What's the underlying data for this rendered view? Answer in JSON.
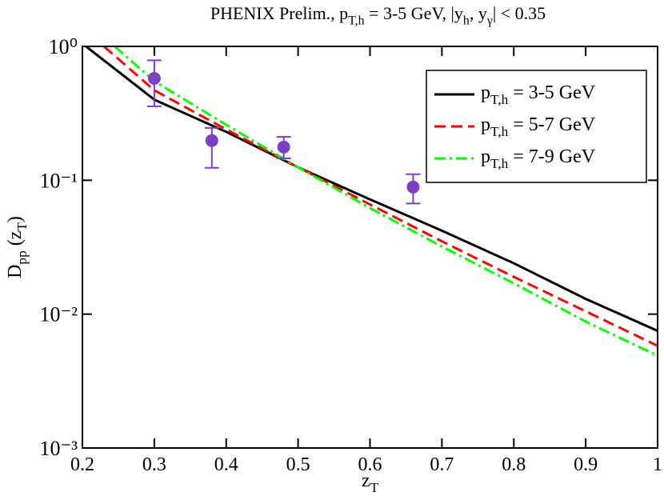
{
  "chart_data": {
    "type": "line",
    "title": [
      {
        "text": "PHENIX Prelim., p",
        "sub": false
      },
      {
        "text": "T,h",
        "sub": true
      },
      {
        "text": " = 3-5 GeV, |y",
        "sub": false
      },
      {
        "text": "h",
        "sub": true
      },
      {
        "text": ", y",
        "sub": false
      },
      {
        "text": "γ",
        "sub": true
      },
      {
        "text": "| < 0.35",
        "sub": false
      }
    ],
    "xlabel": [
      {
        "text": "z",
        "sub": false
      },
      {
        "text": "T",
        "sub": true
      }
    ],
    "ylabel": [
      {
        "text": "D",
        "sub": false
      },
      {
        "text": "pp",
        "sub": true
      },
      {
        "text": " (z",
        "sub": false
      },
      {
        "text": "T",
        "sub": true
      },
      {
        "text": ")",
        "sub": false
      }
    ],
    "xlim": [
      0.2,
      1
    ],
    "xticks": [
      0.2,
      0.3,
      0.4,
      0.5,
      0.6,
      0.7,
      0.8,
      0.9,
      1
    ],
    "ylim": [
      0.001,
      1
    ],
    "yscale": "log",
    "yticks": [
      {
        "value": 0.001,
        "label": "10⁻³"
      },
      {
        "value": 0.01,
        "label": "10⁻²"
      },
      {
        "value": 0.1,
        "label": "10⁻¹"
      },
      {
        "value": 1,
        "label": "10⁰"
      }
    ],
    "legend": "upper right",
    "series": [
      {
        "name": [
          {
            "text": "p",
            "sub": false
          },
          {
            "text": "T,h",
            "sub": true
          },
          {
            "text": " = 3-5 GeV",
            "sub": false
          }
        ],
        "color": "#000000",
        "style": "solid",
        "x": [
          0.205,
          0.3,
          0.4,
          0.5,
          0.6,
          0.7,
          0.8,
          0.9,
          1.0
        ],
        "values": [
          1,
          0.4,
          0.23,
          0.125,
          0.072,
          0.042,
          0.024,
          0.013,
          0.0075
        ]
      },
      {
        "name": [
          {
            "text": "p",
            "sub": false
          },
          {
            "text": "T,h",
            "sub": true
          },
          {
            "text": " = 5-7 GeV",
            "sub": false
          }
        ],
        "color": "#ff0000",
        "style": "dashed",
        "x": [
          0.23,
          0.3,
          0.4,
          0.5,
          0.6,
          0.7,
          0.8,
          0.9,
          1.0
        ],
        "values": [
          1,
          0.47,
          0.24,
          0.125,
          0.066,
          0.035,
          0.019,
          0.0105,
          0.0058
        ]
      },
      {
        "name": [
          {
            "text": "p",
            "sub": false
          },
          {
            "text": "T,h",
            "sub": true
          },
          {
            "text": " = 7-9 GeV",
            "sub": false
          }
        ],
        "color": "#00ff00",
        "style": "dashdot",
        "x": [
          0.245,
          0.3,
          0.4,
          0.5,
          0.6,
          0.7,
          0.8,
          0.9,
          1.0
        ],
        "values": [
          1,
          0.55,
          0.26,
          0.125,
          0.062,
          0.032,
          0.017,
          0.0088,
          0.0049
        ]
      }
    ],
    "points": {
      "color": "#7b3fc4",
      "x": [
        0.3,
        0.38,
        0.48,
        0.66
      ],
      "values": [
        0.577,
        0.198,
        0.177,
        0.089
      ],
      "error_high": [
        0.21,
        0.048,
        0.034,
        0.022
      ],
      "error_low": [
        0.22,
        0.074,
        0.031,
        0.022
      ]
    }
  }
}
